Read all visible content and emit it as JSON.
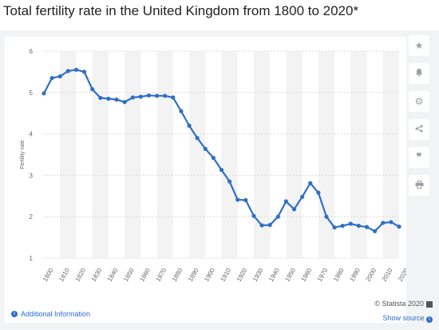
{
  "title": "Total fertility rate in the United Kingdom from 1800 to 2020*",
  "toolbar": {
    "icons": [
      "star-icon",
      "bell-icon",
      "gear-icon",
      "share-icon",
      "quote-icon",
      "print-icon"
    ]
  },
  "footer": {
    "additional_info": "Additional Information",
    "copyright": "© Statista 2020",
    "show_source": "Show source"
  },
  "colors": {
    "line": "#2f6fc4",
    "band": "#f3f3f3",
    "link": "#2c6ecb"
  },
  "chart_data": {
    "type": "line",
    "title": "Total fertility rate in the United Kingdom from 1800 to 2020*",
    "xlabel": "",
    "ylabel": "Fertility rate",
    "ylim": [
      1,
      6
    ],
    "xlim": [
      1800,
      2020
    ],
    "yticks": [
      1,
      2,
      3,
      4,
      5,
      6
    ],
    "xticks": [
      1800,
      1810,
      1820,
      1830,
      1840,
      1850,
      1860,
      1870,
      1880,
      1890,
      1900,
      1910,
      1920,
      1930,
      1940,
      1950,
      1960,
      1970,
      1980,
      1990,
      2000,
      2010,
      2020
    ],
    "grid": true,
    "x": [
      1800,
      1805,
      1810,
      1815,
      1820,
      1825,
      1830,
      1835,
      1840,
      1845,
      1850,
      1855,
      1860,
      1865,
      1870,
      1875,
      1880,
      1885,
      1890,
      1895,
      1900,
      1905,
      1910,
      1915,
      1920,
      1925,
      1930,
      1935,
      1940,
      1945,
      1950,
      1955,
      1960,
      1965,
      1970,
      1975,
      1980,
      1985,
      1990,
      1995,
      2000,
      2005,
      2010,
      2015,
      2020
    ],
    "series": [
      {
        "name": "",
        "values": [
          4.98,
          5.35,
          5.39,
          5.52,
          5.55,
          5.5,
          5.08,
          4.87,
          4.85,
          4.83,
          4.77,
          4.88,
          4.9,
          4.93,
          4.92,
          4.92,
          4.88,
          4.55,
          4.2,
          3.9,
          3.64,
          3.42,
          3.13,
          2.85,
          2.41,
          2.4,
          2.02,
          1.79,
          1.8,
          2.0,
          2.37,
          2.18,
          2.48,
          2.81,
          2.58,
          2.0,
          1.74,
          1.78,
          1.83,
          1.78,
          1.75,
          1.65,
          1.85,
          1.87,
          1.76
        ]
      }
    ]
  }
}
